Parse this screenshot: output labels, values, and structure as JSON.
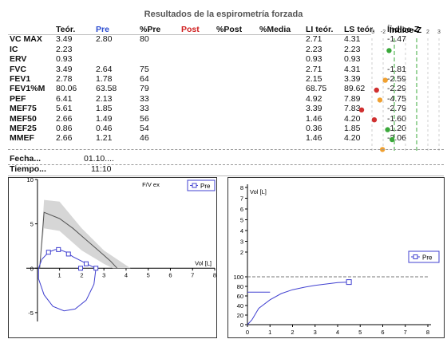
{
  "title": "Resultados de la espirometría forzada",
  "columns": {
    "teor": "Teór.",
    "pre": "Pre",
    "pct_pre": "%Pre",
    "post": "Post",
    "pct_post": "%Post",
    "pct_media": "%Media",
    "li": "LI teór.",
    "ls": "LS teór.",
    "z": "Índice-Z",
    "z_chart_title": "Índice-Z"
  },
  "z_axis": {
    "ticks": [
      "-3",
      "-2",
      "-1",
      "0",
      "1",
      "2",
      "3"
    ],
    "labels_shown": [
      "-3",
      "-2",
      "2",
      "3"
    ]
  },
  "rows": [
    {
      "name": "VC MÁX",
      "teor": "3.49",
      "pre": "2.80",
      "pct_pre": "80",
      "li": "2.71",
      "ls": "4.31",
      "z": "-1.47",
      "zval": -1.47,
      "color": "#3aa83a"
    },
    {
      "name": "IC",
      "teor": "2.23",
      "pre": "",
      "pct_pre": "",
      "li": "2.23",
      "ls": "2.23",
      "z": "",
      "zval": null,
      "color": ""
    },
    {
      "name": "ERV",
      "teor": "0.93",
      "pre": "",
      "pct_pre": "",
      "li": "0.93",
      "ls": "0.93",
      "z": "",
      "zval": null,
      "color": ""
    },
    {
      "name": "FVC",
      "teor": "3.49",
      "pre": "2.64",
      "pct_pre": "75",
      "li": "2.71",
      "ls": "4.31",
      "z": "-1.81",
      "zval": -1.81,
      "color": "#f0a030"
    },
    {
      "name": "FEV1",
      "teor": "2.78",
      "pre": "1.78",
      "pct_pre": "64",
      "li": "2.15",
      "ls": "3.39",
      "z": "-2.59",
      "zval": -2.59,
      "color": "#d03030"
    },
    {
      "name": "FEV1%M",
      "teor": "80.06",
      "pre": "63.58",
      "pct_pre": "79",
      "li": "68.75",
      "ls": "89.62",
      "z": "-2.29",
      "zval": -2.29,
      "color": "#f0a030"
    },
    {
      "name": "PEF",
      "teor": "6.41",
      "pre": "2.13",
      "pct_pre": "33",
      "li": "4.92",
      "ls": "7.89",
      "z": "-4.75",
      "zval": -4.75,
      "color": "#d03030"
    },
    {
      "name": "MEF75",
      "teor": "5.61",
      "pre": "1.85",
      "pct_pre": "33",
      "li": "3.39",
      "ls": "7.83",
      "z": "-2.79",
      "zval": -2.79,
      "color": "#d03030"
    },
    {
      "name": "MEF50",
      "teor": "2.66",
      "pre": "1.49",
      "pct_pre": "56",
      "li": "1.46",
      "ls": "4.20",
      "z": "-1.60",
      "zval": -1.6,
      "color": "#3aa83a"
    },
    {
      "name": "MEF25",
      "teor": "0.86",
      "pre": "0.46",
      "pct_pre": "54",
      "li": "0.36",
      "ls": "1.85",
      "z": "-1.20",
      "zval": -1.2,
      "color": "#3aa83a"
    },
    {
      "name": "MMEF",
      "teor": "2.66",
      "pre": "1.21",
      "pct_pre": "46",
      "li": "1.46",
      "ls": "4.20",
      "z": "-2.06",
      "zval": -2.06,
      "color": "#f0a030"
    }
  ],
  "info": {
    "fecha_label": "Fecha...",
    "fecha_value": "01.10....",
    "tiempo_label": "Tiempo...",
    "tiempo_value": "11:10"
  },
  "chart_data": [
    {
      "type": "line",
      "title": "F/V ex",
      "xlabel": "Vol [L]",
      "ylabel": "",
      "xlim": [
        -0.5,
        8
      ],
      "ylim": [
        -6,
        10
      ],
      "x_ticks": [
        "1",
        "2",
        "3",
        "4",
        "5",
        "6",
        "7",
        "8"
      ],
      "y_ticks": [
        "10",
        "5",
        "0",
        "-5"
      ],
      "legend": "Pre",
      "legend_position": "top-right",
      "predicted_band": {
        "upper": [
          [
            0.1,
            0
          ],
          [
            0.3,
            7.7
          ],
          [
            1,
            7.5
          ],
          [
            2,
            4.5
          ],
          [
            3,
            2.0
          ],
          [
            4.2,
            0
          ]
        ],
        "lower": [
          [
            0.1,
            0
          ],
          [
            0.3,
            4.5
          ],
          [
            1,
            4.2
          ],
          [
            2,
            2.0
          ],
          [
            3,
            0.5
          ],
          [
            3.4,
            0
          ]
        ]
      },
      "predicted_curve": [
        [
          0.1,
          0
        ],
        [
          0.3,
          6.3
        ],
        [
          1,
          5.6
        ],
        [
          1.6,
          4.5
        ],
        [
          2.2,
          3.2
        ],
        [
          2.8,
          1.9
        ],
        [
          3.3,
          0.8
        ],
        [
          3.6,
          0
        ]
      ],
      "series": [
        {
          "name": "Pre",
          "expiratory": [
            [
              0.05,
              0
            ],
            [
              0.2,
              1.0
            ],
            [
              0.5,
              1.8
            ],
            [
              0.8,
              2.1
            ],
            [
              1.0,
              2.1
            ],
            [
              1.3,
              1.8
            ],
            [
              1.6,
              1.3
            ],
            [
              2.0,
              0.8
            ],
            [
              2.3,
              0.4
            ],
            [
              2.64,
              0
            ]
          ],
          "inspiratory": [
            [
              2.64,
              0
            ],
            [
              2.55,
              -1.8
            ],
            [
              2.2,
              -3.6
            ],
            [
              1.7,
              -4.6
            ],
            [
              1.2,
              -4.8
            ],
            [
              0.7,
              -4.3
            ],
            [
              0.3,
              -3.0
            ],
            [
              0.05,
              -1.2
            ],
            [
              0.05,
              0
            ]
          ],
          "markers": [
            [
              0.5,
              1.8
            ],
            [
              0.95,
              2.1
            ],
            [
              1.4,
              1.6
            ],
            [
              1.95,
              0
            ],
            [
              2.2,
              0.5
            ],
            [
              2.64,
              0
            ]
          ]
        }
      ]
    },
    {
      "type": "line",
      "title": "",
      "xlabel": "",
      "ylabel": "Vol [L]",
      "xlim": [
        0,
        8
      ],
      "ylim_upper": [
        0,
        8
      ],
      "ylim_lower_pct": [
        0,
        100
      ],
      "x_ticks": [
        "0",
        "1",
        "2",
        "3",
        "4",
        "5",
        "6",
        "7",
        "8"
      ],
      "y_ticks_upper": [
        "2",
        "3",
        "4",
        "5",
        "6",
        "7",
        "8"
      ],
      "y_ticks_lower": [
        "0",
        "20",
        "40",
        "60",
        "80",
        "100"
      ],
      "reference_pct": 100,
      "legend": "Pre",
      "legend_position": "right",
      "series": [
        {
          "name": "Pre",
          "line": [
            [
              0,
              0
            ],
            [
              0.2,
              10
            ],
            [
              0.5,
              34
            ],
            [
              1,
              52
            ],
            [
              1.5,
              65
            ],
            [
              2,
              73
            ],
            [
              2.5,
              78
            ],
            [
              3,
              82
            ],
            [
              3.5,
              85
            ],
            [
              4,
              88
            ],
            [
              4.5,
              89
            ]
          ],
          "flat_pre": [
            [
              0,
              68
            ],
            [
              1,
              68
            ]
          ],
          "marker": [
            [
              4.5,
              89
            ]
          ]
        }
      ]
    }
  ]
}
